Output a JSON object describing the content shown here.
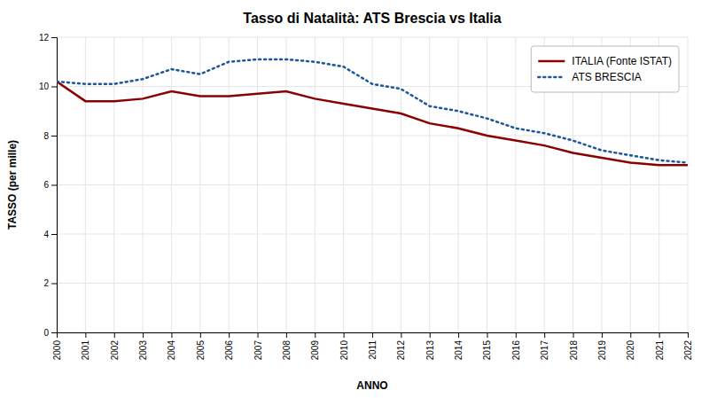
{
  "chart_data": {
    "type": "line",
    "title": "Tasso di Natalità: ATS Brescia vs Italia",
    "xlabel": "ANNO",
    "ylabel": "TASSO (per mille)",
    "x": [
      2000,
      2001,
      2002,
      2003,
      2004,
      2005,
      2006,
      2007,
      2008,
      2009,
      2010,
      2011,
      2012,
      2013,
      2014,
      2015,
      2016,
      2017,
      2018,
      2019,
      2020,
      2021,
      2022
    ],
    "series": [
      {
        "name": "ITALIA (Fonte ISTAT)",
        "color": "#8B0000",
        "line_style": "solid",
        "values": [
          10.2,
          9.4,
          9.4,
          9.5,
          9.8,
          9.6,
          9.6,
          9.7,
          9.8,
          9.5,
          9.3,
          9.1,
          8.9,
          8.5,
          8.3,
          8.0,
          7.8,
          7.6,
          7.3,
          7.1,
          6.9,
          6.8,
          6.8
        ]
      },
      {
        "name": "ATS BRESCIA",
        "color": "#1E5799",
        "line_style": "dotted",
        "values": [
          10.2,
          10.1,
          10.1,
          10.3,
          10.7,
          10.5,
          11.0,
          11.1,
          11.1,
          11.0,
          10.8,
          10.1,
          9.9,
          9.2,
          9.0,
          8.7,
          8.3,
          8.1,
          7.8,
          7.4,
          7.2,
          7.0,
          6.9
        ]
      }
    ],
    "xlim": [
      2000,
      2022
    ],
    "xticks": [
      2000,
      2001,
      2002,
      2003,
      2004,
      2005,
      2006,
      2007,
      2008,
      2009,
      2010,
      2011,
      2012,
      2013,
      2014,
      2015,
      2016,
      2017,
      2018,
      2019,
      2020,
      2021,
      2022
    ],
    "ylim": [
      0,
      12
    ],
    "yticks": [
      0,
      2,
      4,
      6,
      8,
      10,
      12
    ],
    "grid": true,
    "legend": "upper right"
  }
}
